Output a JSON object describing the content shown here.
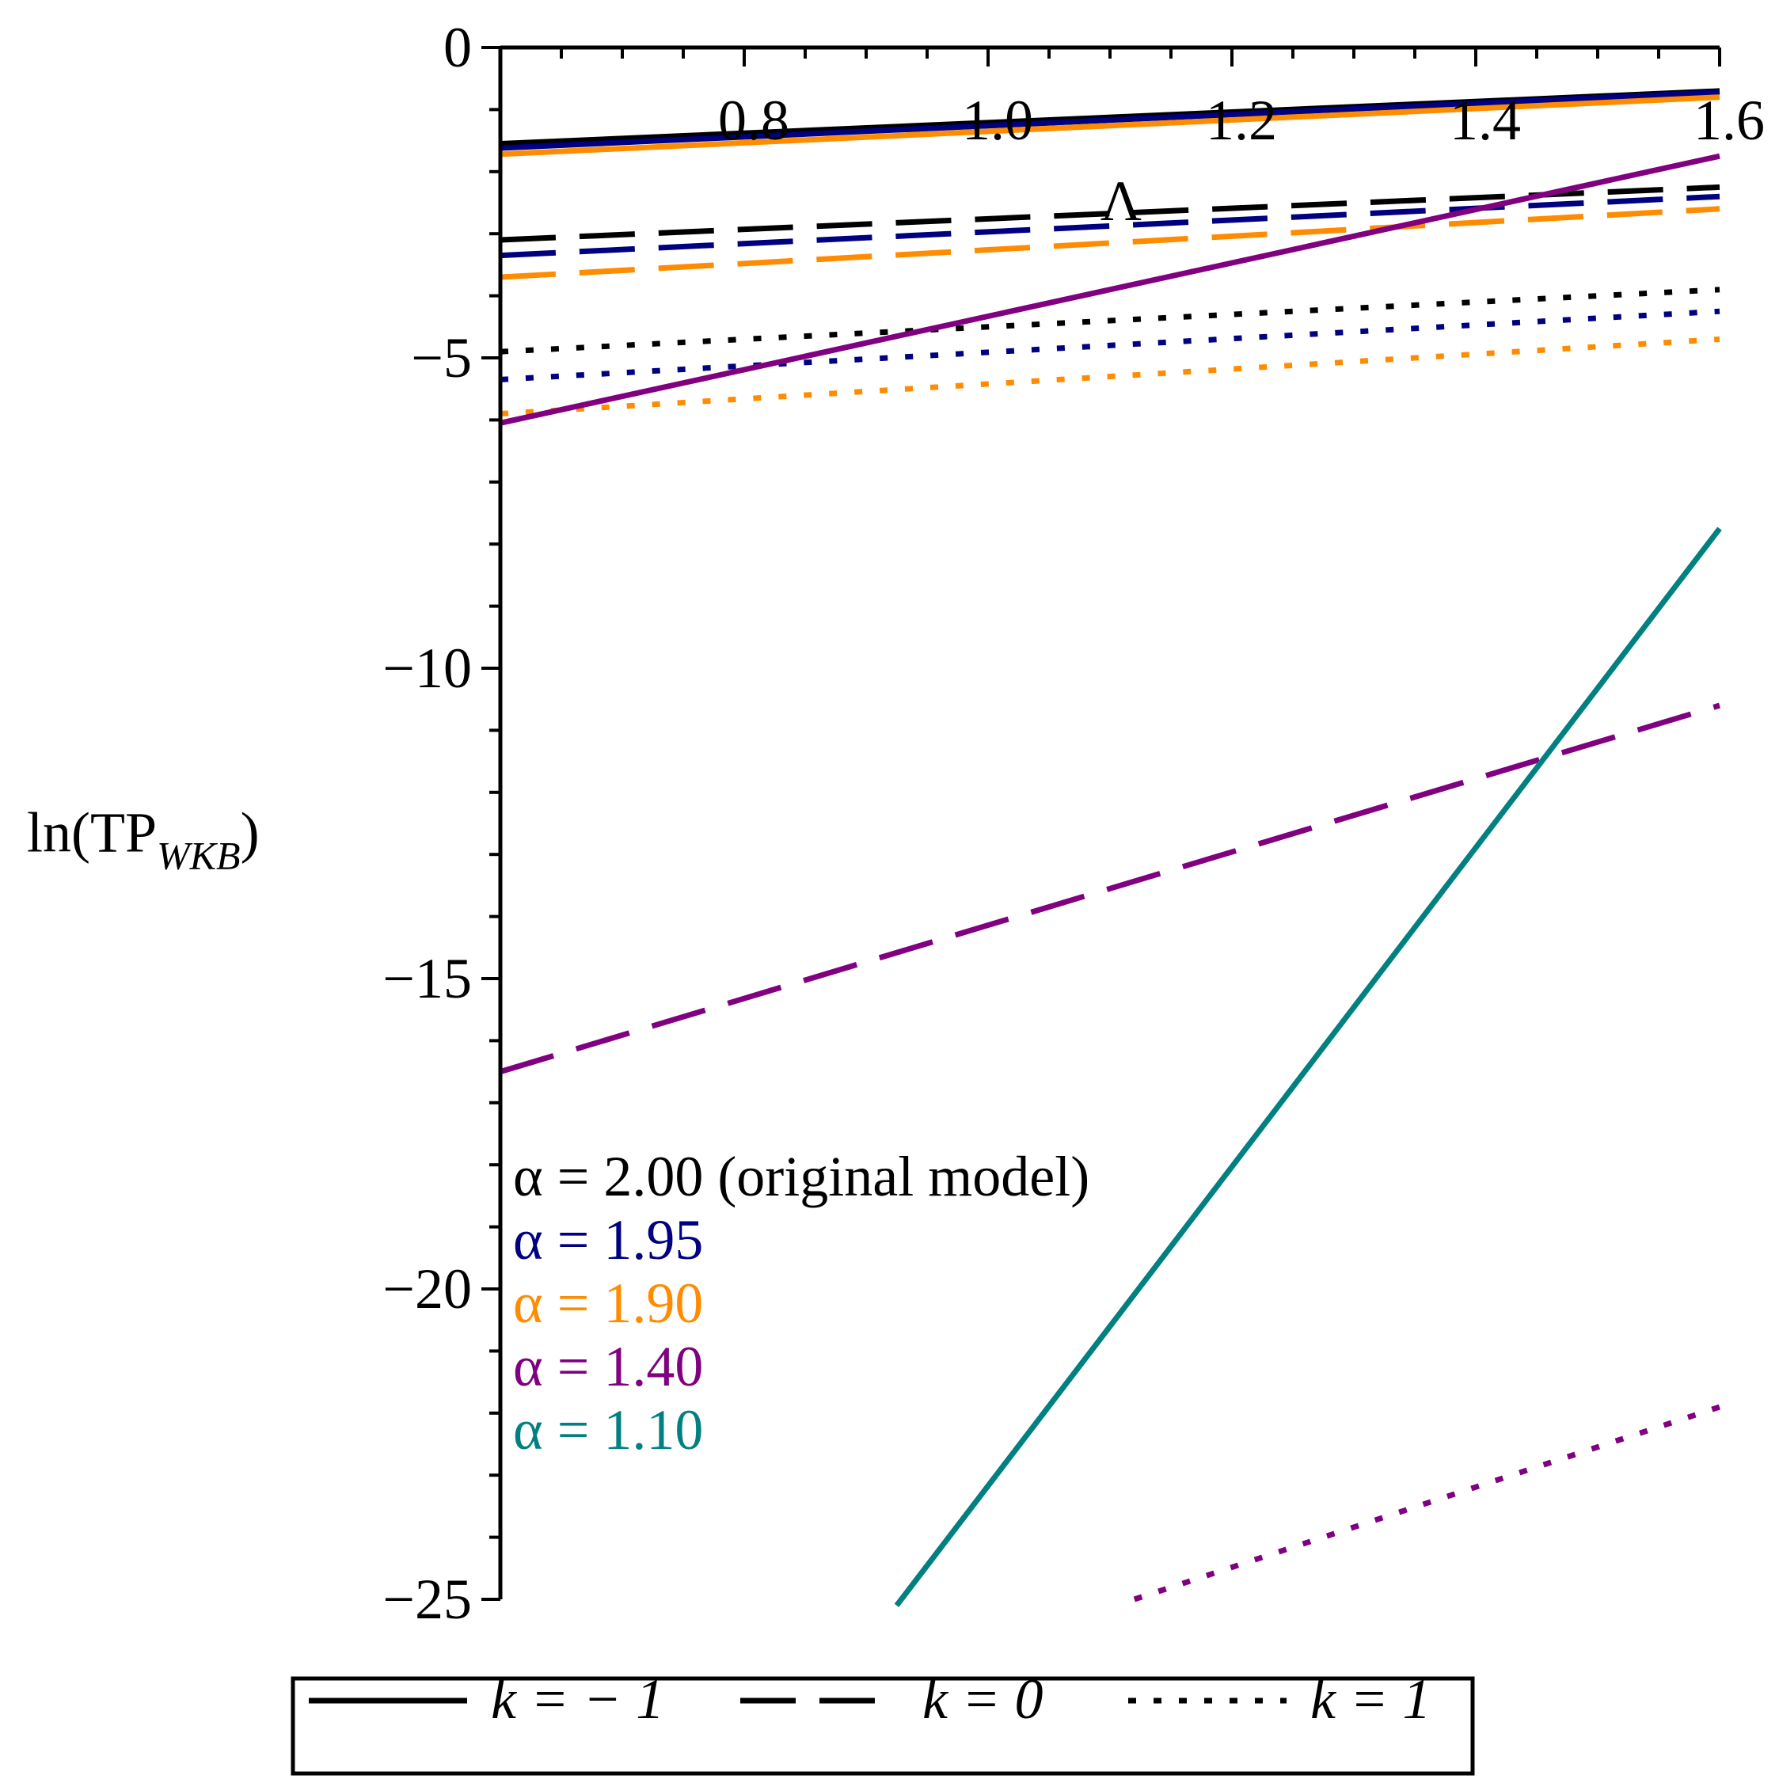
{
  "chart_data": {
    "type": "line",
    "title": "",
    "xlabel": "Λ",
    "ylabel": {
      "main": "ln(TP",
      "subscript": "WKB",
      "close": ")",
      "full": "ln(TP_WKB)"
    },
    "xlim": [
      0.6,
      1.6
    ],
    "ylim": [
      -25,
      0
    ],
    "x_ticks": [
      {
        "value": 0.8,
        "label": "0.8"
      },
      {
        "value": 1.0,
        "label": "1.0"
      },
      {
        "value": 1.2,
        "label": "1.2"
      },
      {
        "value": 1.4,
        "label": "1.4"
      },
      {
        "value": 1.6,
        "label": "1.6"
      }
    ],
    "y_ticks": [
      {
        "value": 0,
        "label": "0"
      },
      {
        "value": -5,
        "label": "−5"
      },
      {
        "value": -10,
        "label": "−10"
      },
      {
        "value": -15,
        "label": "−15"
      },
      {
        "value": -20,
        "label": "−20"
      },
      {
        "value": -25,
        "label": "−25"
      }
    ],
    "grid": false,
    "alpha_annotations": [
      {
        "text": "α = 2.00 (original model)",
        "color": "#000000"
      },
      {
        "text": "α = 1.95",
        "color": "#000080"
      },
      {
        "text": "α = 1.90",
        "color": "#ff8c00"
      },
      {
        "text": "α = 1.40",
        "color": "#800080"
      },
      {
        "text": "α = 1.10",
        "color": "#008080"
      }
    ],
    "legend": {
      "position": "bottom",
      "entries": [
        {
          "style": "solid",
          "label": "k = − 1"
        },
        {
          "style": "dashed",
          "label": "k = 0"
        },
        {
          "style": "dotted",
          "label": "k = 1"
        }
      ]
    },
    "series": [
      {
        "name": "α=2.00, k=−1",
        "color": "#000000",
        "style": "solid",
        "x": [
          0.6,
          1.6
        ],
        "y": [
          -1.55,
          -0.7
        ]
      },
      {
        "name": "α=1.95, k=−1",
        "color": "#000080",
        "style": "solid",
        "x": [
          0.6,
          1.6
        ],
        "y": [
          -1.62,
          -0.72
        ]
      },
      {
        "name": "α=1.90, k=−1",
        "color": "#ff8c00",
        "style": "solid",
        "x": [
          0.6,
          1.6
        ],
        "y": [
          -1.72,
          -0.8
        ]
      },
      {
        "name": "α=2.00, k=0",
        "color": "#000000",
        "style": "dashed",
        "x": [
          0.6,
          1.6
        ],
        "y": [
          -3.1,
          -2.25
        ]
      },
      {
        "name": "α=1.95, k=0",
        "color": "#000080",
        "style": "dashed",
        "x": [
          0.6,
          1.6
        ],
        "y": [
          -3.35,
          -2.4
        ]
      },
      {
        "name": "α=1.90, k=0",
        "color": "#ff8c00",
        "style": "dashed",
        "x": [
          0.6,
          1.6
        ],
        "y": [
          -3.7,
          -2.6
        ]
      },
      {
        "name": "α=2.00, k=1",
        "color": "#000000",
        "style": "dotted",
        "x": [
          0.6,
          1.6
        ],
        "y": [
          -4.9,
          -3.9
        ]
      },
      {
        "name": "α=1.95, k=1",
        "color": "#000080",
        "style": "dotted",
        "x": [
          0.6,
          1.6
        ],
        "y": [
          -5.35,
          -4.25
        ]
      },
      {
        "name": "α=1.90, k=1",
        "color": "#ff8c00",
        "style": "dotted",
        "x": [
          0.6,
          1.6
        ],
        "y": [
          -5.9,
          -4.7
        ]
      },
      {
        "name": "α=1.40, k=−1",
        "color": "#800080",
        "style": "solid",
        "x": [
          0.6,
          1.6
        ],
        "y": [
          -6.05,
          -1.75
        ]
      },
      {
        "name": "α=1.40, k=0",
        "color": "#800080",
        "style": "dashed",
        "x": [
          0.6,
          1.6
        ],
        "y": [
          -16.5,
          -10.6
        ]
      },
      {
        "name": "α=1.40, k=1",
        "color": "#800080",
        "style": "dotted",
        "x": [
          1.12,
          1.6
        ],
        "y": [
          -25.0,
          -21.9
        ]
      },
      {
        "name": "α=1.10, k=−1",
        "color": "#008080",
        "style": "solid",
        "x": [
          0.925,
          1.6
        ],
        "y": [
          -25.1,
          -7.75
        ]
      }
    ]
  }
}
